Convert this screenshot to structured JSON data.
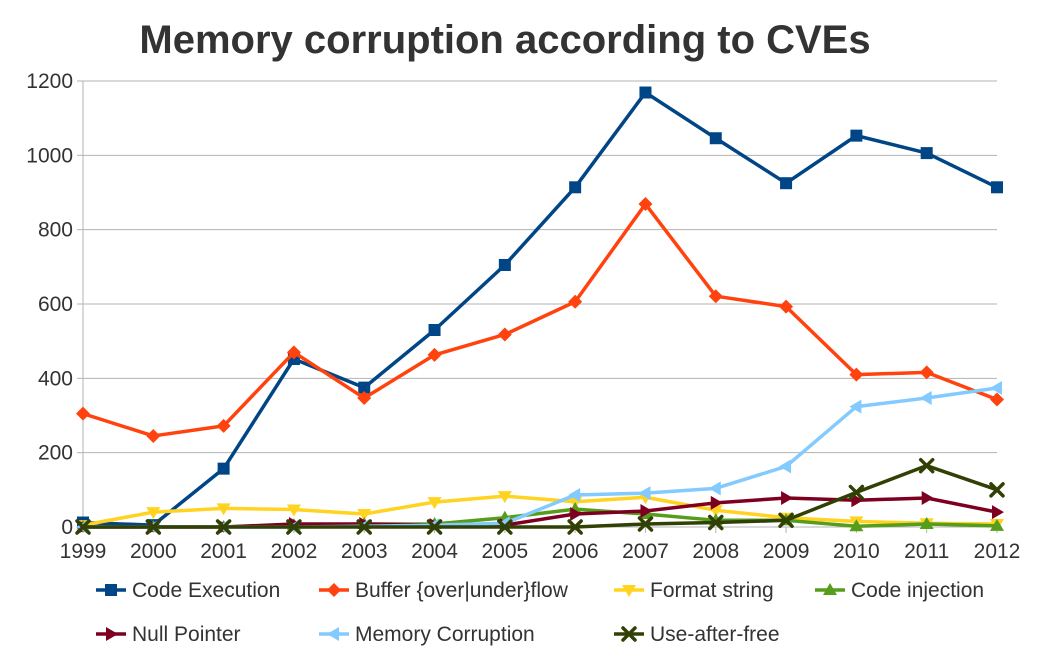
{
  "chart_data": {
    "type": "line",
    "title": "Memory corruption according to CVEs",
    "xlabel": "",
    "ylabel": "",
    "categories": [
      "1999",
      "2000",
      "2001",
      "2002",
      "2003",
      "2004",
      "2005",
      "2006",
      "2007",
      "2008",
      "2009",
      "2010",
      "2011",
      "2012"
    ],
    "ylim": [
      0,
      1200
    ],
    "yticks": [
      0,
      200,
      400,
      600,
      800,
      1000,
      1200
    ],
    "grid": true,
    "legend_position": "bottom",
    "series": [
      {
        "name": "Code Execution",
        "color": "#004586",
        "marker": "square",
        "values": [
          12,
          5,
          157,
          452,
          375,
          530,
          705,
          914,
          1169,
          1046,
          925,
          1053,
          1006,
          914
        ]
      },
      {
        "name": "Buffer {over|under}flow",
        "color": "#ff420e",
        "marker": "diamond",
        "values": [
          305,
          245,
          272,
          470,
          347,
          463,
          518,
          606,
          869,
          621,
          593,
          410,
          416,
          343
        ]
      },
      {
        "name": "Format string",
        "color": "#ffd320",
        "marker": "triangle-down",
        "values": [
          5,
          40,
          50,
          47,
          35,
          67,
          83,
          68,
          80,
          45,
          25,
          15,
          10,
          8
        ]
      },
      {
        "name": "Code injection",
        "color": "#579d1c",
        "marker": "triangle-up",
        "values": [
          0,
          0,
          0,
          5,
          8,
          8,
          25,
          48,
          35,
          18,
          18,
          2,
          8,
          3
        ]
      },
      {
        "name": "Null Pointer",
        "color": "#7e0021",
        "marker": "triangle-right",
        "values": [
          0,
          0,
          0,
          8,
          8,
          5,
          5,
          35,
          43,
          65,
          78,
          72,
          78,
          40
        ]
      },
      {
        "name": "Memory Corruption",
        "color": "#83caff",
        "marker": "triangle-left",
        "values": [
          0,
          0,
          0,
          0,
          2,
          5,
          10,
          86,
          91,
          104,
          163,
          324,
          347,
          374
        ]
      },
      {
        "name": "Use-after-free",
        "color": "#314004",
        "marker": "cross",
        "values": [
          0,
          0,
          0,
          0,
          0,
          0,
          0,
          0,
          8,
          12,
          18,
          93,
          165,
          100
        ]
      }
    ]
  }
}
